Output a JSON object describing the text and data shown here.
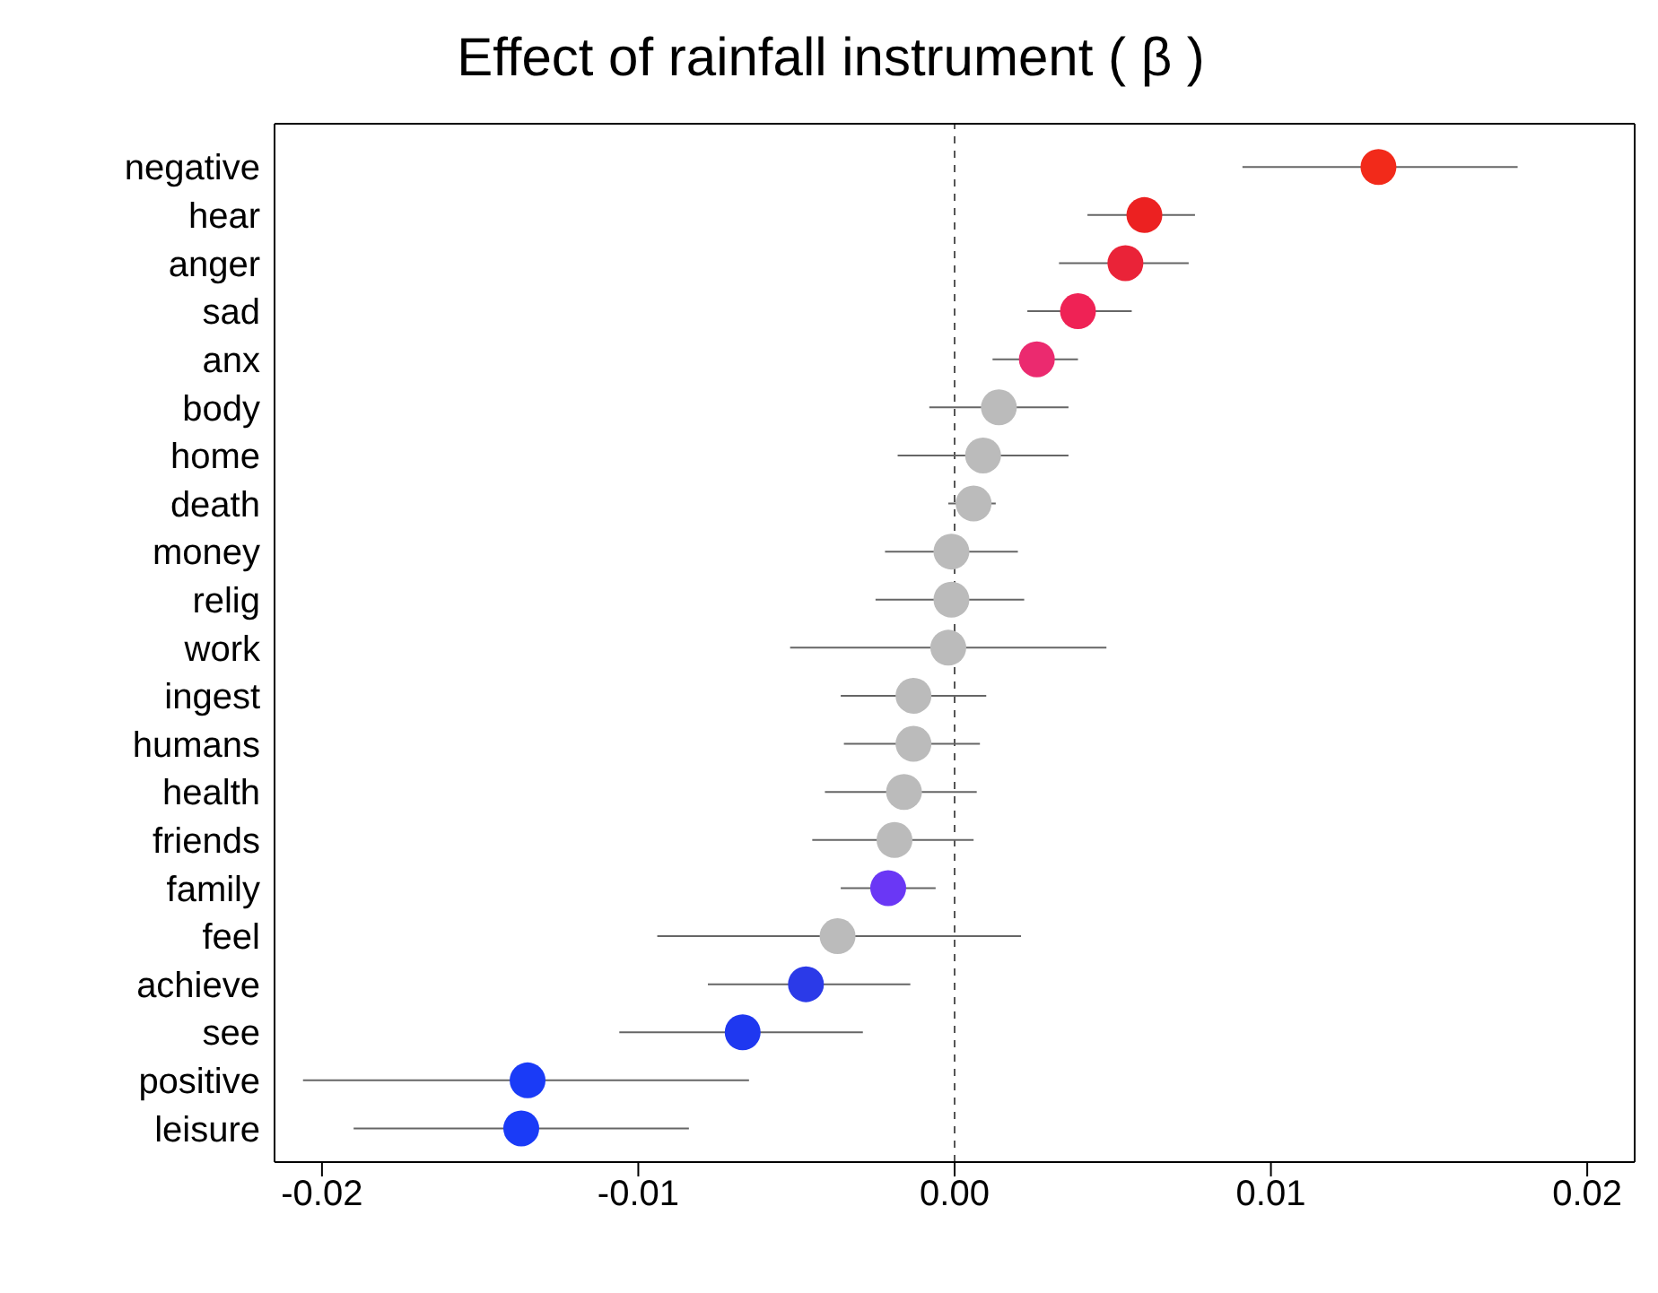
{
  "chart_data": {
    "type": "scatter",
    "orientation": "horizontal",
    "title": "Effect of rainfall instrument ( β )",
    "categories": [
      "negative",
      "hear",
      "anger",
      "sad",
      "anx",
      "body",
      "home",
      "death",
      "money",
      "relig",
      "work",
      "ingest",
      "humans",
      "health",
      "friends",
      "family",
      "feel",
      "achieve",
      "see",
      "positive",
      "leisure"
    ],
    "values": [
      0.0134,
      0.006,
      0.0054,
      0.0039,
      0.0026,
      0.0014,
      0.0009,
      0.0006,
      -0.0001,
      -0.0001,
      -0.0002,
      -0.0013,
      -0.0013,
      -0.0016,
      -0.0019,
      -0.0021,
      -0.0037,
      -0.0047,
      -0.0067,
      -0.0135,
      -0.0137
    ],
    "errors": [
      [
        0.0091,
        0.0178
      ],
      [
        0.0042,
        0.0076
      ],
      [
        0.0033,
        0.0074
      ],
      [
        0.0023,
        0.0056
      ],
      [
        0.0012,
        0.0039
      ],
      [
        -0.0008,
        0.0036
      ],
      [
        -0.0018,
        0.0036
      ],
      [
        -0.0002,
        0.0013
      ],
      [
        -0.0022,
        0.002
      ],
      [
        -0.0025,
        0.0022
      ],
      [
        -0.0052,
        0.0048
      ],
      [
        -0.0036,
        0.001
      ],
      [
        -0.0035,
        0.0008
      ],
      [
        -0.0041,
        0.0007
      ],
      [
        -0.0045,
        0.0006
      ],
      [
        -0.0036,
        -0.0006
      ],
      [
        -0.0094,
        0.0021
      ],
      [
        -0.0078,
        -0.0014
      ],
      [
        -0.0106,
        -0.0029
      ],
      [
        -0.0206,
        -0.0065
      ],
      [
        -0.019,
        -0.0084
      ]
    ],
    "colors": [
      "#f22a1a",
      "#ec2121",
      "#ea2338",
      "#ef2255",
      "#eb2a6f",
      "#bbbbbb",
      "#bbbbbb",
      "#bbbbbb",
      "#bbbbbb",
      "#bbbbbb",
      "#bbbbbb",
      "#bbbbbb",
      "#bbbbbb",
      "#bbbbbb",
      "#bbbbbb",
      "#6a37f5",
      "#bbbbbb",
      "#2b3ae8",
      "#1f38f0",
      "#1a3bf7",
      "#1a3bf7"
    ],
    "xlim": [
      -0.0215,
      0.0215
    ],
    "xticks": [
      {
        "value": -0.02,
        "label": "-0.02"
      },
      {
        "value": -0.01,
        "label": "-0.01"
      },
      {
        "value": 0,
        "label": "0.00"
      },
      {
        "value": 0.01,
        "label": "0.01"
      },
      {
        "value": 0.02,
        "label": "0.02"
      }
    ],
    "ref_lines": [
      {
        "axis": "x",
        "value": 0,
        "label": null,
        "color": "#555555",
        "line_style": "dashed"
      }
    ],
    "marker": "circle",
    "grid": false
  }
}
